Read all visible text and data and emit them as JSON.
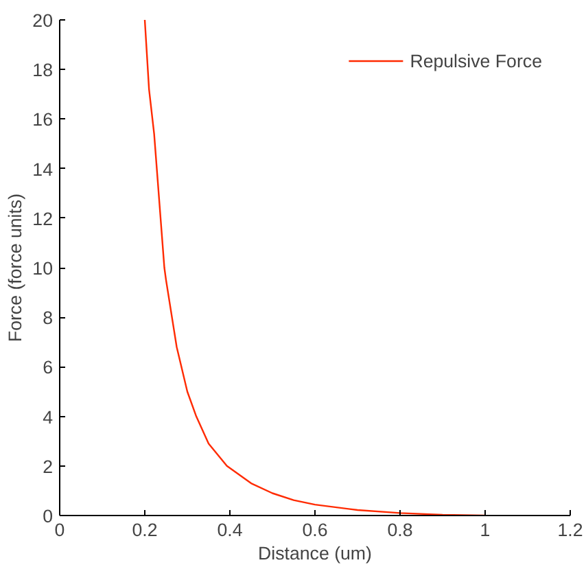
{
  "chart_data": {
    "type": "line",
    "xlabel": "Distance (um)",
    "ylabel": "Force (force units)",
    "x": [
      0.2,
      0.21,
      0.222,
      0.246,
      0.25,
      0.275,
      0.3,
      0.321,
      0.35,
      0.393,
      0.45,
      0.5,
      0.55,
      0.6,
      0.7,
      0.8,
      0.9,
      1.0
    ],
    "series": [
      {
        "name": "Repulsive Force",
        "color": "#ff2a00",
        "values": [
          20,
          17.2,
          15.4,
          10,
          9.5,
          6.8,
          5.0,
          4.0,
          2.9,
          2.0,
          1.3,
          0.9,
          0.62,
          0.44,
          0.22,
          0.1,
          0.03,
          0
        ]
      }
    ],
    "xlim": [
      0,
      1.2
    ],
    "ylim": [
      0,
      20
    ],
    "xticks": [
      0,
      0.2,
      0.4,
      0.6,
      0.8,
      1,
      1.2
    ],
    "yticks": [
      0,
      2,
      4,
      6,
      8,
      10,
      12,
      14,
      16,
      18,
      20
    ],
    "grid": false,
    "legend": "top right",
    "marker": "none",
    "line_style": "solid"
  }
}
